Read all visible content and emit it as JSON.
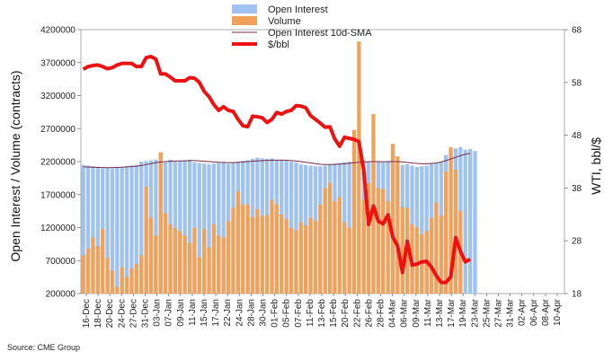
{
  "chart_data": {
    "type": "bar",
    "source": "Source: CME Group",
    "ylabel_left": "Open Interest / Volume (contracts)",
    "ylabel_right": "WTI, bbl/$",
    "ylim_left": [
      200000,
      4200000
    ],
    "yticks_left": [
      "4200000",
      "3700000",
      "3200000",
      "2700000",
      "2200000",
      "1700000",
      "1200000",
      "700000",
      "200000"
    ],
    "ylim_right": [
      18,
      68
    ],
    "yticks_right": [
      "68",
      "58",
      "48",
      "38",
      "28",
      "18"
    ],
    "xtick_labels": [
      "16-Dec",
      "18-Dec",
      "20-Dec",
      "24-Dec",
      "27-Dec",
      "31-Dec",
      "03-Jan",
      "07-Jan",
      "09-Jan",
      "11-Jan",
      "15-Jan",
      "17-Jan",
      "22-Jan",
      "24-Jan",
      "28-Jan",
      "30-Jan",
      "01-Feb",
      "05-Feb",
      "07-Feb",
      "11-Feb",
      "13-Feb",
      "15-Feb",
      "20-Feb",
      "22-Feb",
      "26-Feb",
      "28-Feb",
      "04-Mar",
      "06-Mar",
      "09-Mar",
      "11-Mar",
      "13-Mar",
      "17-Mar",
      "19-Mar",
      "23-Mar",
      "25-Mar",
      "27-Mar",
      "31-Mar",
      "02-Apr",
      "06-Apr",
      "08-Apr",
      "10-Apr"
    ],
    "legend": [
      "Open Interest",
      "Volume",
      "Open Interest 10d-SMA",
      "$/bbl"
    ],
    "colors": {
      "open_interest": "#9fc3ee",
      "volume": "#f0a25a",
      "sma": "#7a2a4a",
      "price": "#ee1111"
    },
    "series": [
      {
        "name": "Open Interest",
        "axis": "left",
        "values": [
          2150000,
          2140000,
          2130000,
          2120000,
          2100000,
          2110000,
          2100000,
          2110000,
          2120000,
          2130000,
          2140000,
          2150000,
          2200000,
          2210000,
          2220000,
          2230000,
          2200000,
          2190000,
          2230000,
          2200000,
          2210000,
          2220000,
          2230000,
          2190000,
          2180000,
          2170000,
          2160000,
          2170000,
          2180000,
          2190000,
          2170000,
          2180000,
          2200000,
          2210000,
          2220000,
          2240000,
          2260000,
          2250000,
          2240000,
          2250000,
          2230000,
          2220000,
          2210000,
          2200000,
          2190000,
          2160000,
          2150000,
          2140000,
          2130000,
          2130000,
          2140000,
          2160000,
          2170000,
          2180000,
          2190000,
          2200000,
          2210000,
          2220000,
          2210000,
          2200000,
          2190000,
          2200000,
          2190000,
          2210000,
          2240000,
          2200000,
          2150000,
          2160000,
          2140000,
          2120000,
          2130000,
          2140000,
          2170000,
          2180000,
          2200000,
          2300000,
          2350000,
          2400000,
          2420000,
          2380000,
          2390000,
          2360000
        ]
      },
      {
        "name": "Volume",
        "axis": "left",
        "values": [
          780000,
          880000,
          1050000,
          920000,
          1180000,
          740000,
          550000,
          300000,
          600000,
          450000,
          580000,
          650000,
          780000,
          1820000,
          1350000,
          1080000,
          2340000,
          1420000,
          1250000,
          1190000,
          1150000,
          1080000,
          970000,
          1200000,
          750000,
          1180000,
          900000,
          1250000,
          1080000,
          1050000,
          1300000,
          1500000,
          1750000,
          1550000,
          1550000,
          1360000,
          1480000,
          1380000,
          1390000,
          1620000,
          1550000,
          1400000,
          1330000,
          1200000,
          1160000,
          1280000,
          1230000,
          1350000,
          1300000,
          1550000,
          1800000,
          1880000,
          1600000,
          1660000,
          1280000,
          1200000,
          2680000,
          4020000,
          1620000,
          1870000,
          2920000,
          1800000,
          1780000,
          1600000,
          2470000,
          2280000,
          1510000,
          1500000,
          1250000,
          1200000,
          1100000,
          1150000,
          1350000,
          1580000,
          1380000,
          2050000,
          2420000,
          2080000,
          1450000
        ]
      },
      {
        "name": "Open Interest 10d-SMA",
        "axis": "left",
        "values": [
          2120000,
          2118000,
          2115000,
          2112000,
          2110000,
          2108000,
          2110000,
          2112000,
          2115000,
          2120000,
          2125000,
          2130000,
          2140000,
          2155000,
          2170000,
          2185000,
          2195000,
          2200000,
          2205000,
          2208000,
          2210000,
          2212000,
          2215000,
          2215000,
          2210000,
          2205000,
          2200000,
          2195000,
          2190000,
          2188000,
          2185000,
          2185000,
          2190000,
          2195000,
          2200000,
          2205000,
          2210000,
          2215000,
          2218000,
          2220000,
          2222000,
          2222000,
          2220000,
          2215000,
          2210000,
          2200000,
          2190000,
          2180000,
          2170000,
          2160000,
          2155000,
          2155000,
          2158000,
          2162000,
          2168000,
          2175000,
          2182000,
          2190000,
          2195000,
          2198000,
          2200000,
          2200000,
          2198000,
          2198000,
          2200000,
          2200000,
          2195000,
          2188000,
          2180000,
          2172000,
          2168000,
          2168000,
          2172000,
          2180000,
          2195000,
          2215000,
          2240000,
          2265000,
          2290000,
          2310000,
          2325000
        ]
      },
      {
        "name": "$/bbl",
        "axis": "right",
        "values": [
          60.5,
          61.0,
          61.2,
          61.3,
          61.0,
          60.6,
          60.8,
          61.3,
          61.6,
          61.6,
          61.6,
          61.0,
          61.0,
          62.7,
          62.9,
          62.4,
          59.6,
          59.6,
          59.0,
          58.3,
          58.3,
          58.3,
          58.9,
          58.8,
          58.0,
          56.3,
          55.3,
          53.8,
          52.7,
          53.4,
          52.7,
          52.5,
          51.0,
          49.8,
          49.6,
          51.6,
          51.5,
          51.3,
          50.4,
          51.0,
          52.3,
          52.0,
          52.5,
          52.7,
          53.6,
          53.5,
          53.2,
          51.7,
          51.0,
          50.3,
          49.5,
          49.6,
          47.3,
          45.9,
          47.6,
          47.4,
          47.2,
          46.8,
          41.3,
          31.1,
          34.6,
          31.7,
          31.2,
          32.9,
          28.7,
          27.0,
          22.0,
          27.9,
          23.4,
          23.6,
          24.0,
          24.1,
          23.0,
          21.4,
          20.1,
          20.1,
          21.2,
          28.6,
          26.0,
          24.0,
          24.5
        ]
      }
    ]
  }
}
